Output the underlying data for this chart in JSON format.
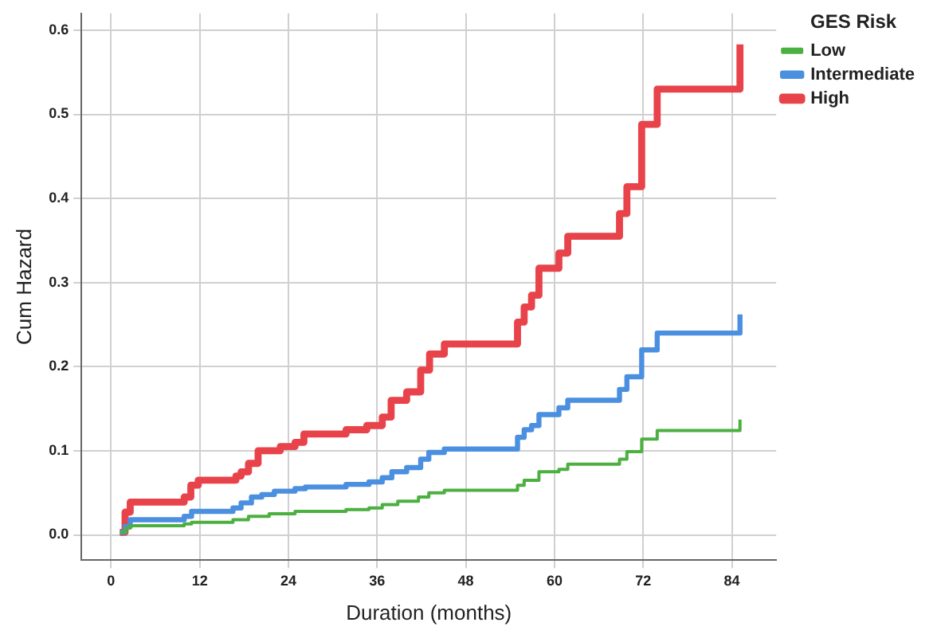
{
  "chart_data": {
    "type": "step",
    "xlabel": "Duration (months)",
    "ylabel": "Cum Hazard",
    "legend_title": "GES Risk",
    "legend": "top right",
    "grid": true,
    "line_style": "solid",
    "marker": "none",
    "xlim": [
      -4,
      90
    ],
    "ylim": [
      -0.03,
      0.62
    ],
    "xticks": [
      0,
      12,
      24,
      36,
      48,
      60,
      72,
      84
    ],
    "yticks": [
      {
        "value": 0,
        "label": "0.0"
      },
      {
        "value": 0.1,
        "label": "0.1"
      },
      {
        "value": 0.2,
        "label": "0.2"
      },
      {
        "value": 0.3,
        "label": "0.3"
      },
      {
        "value": 0.4,
        "label": "0.4"
      },
      {
        "value": 0.5,
        "label": "0.5"
      },
      {
        "value": 0.6,
        "label": "0.6"
      }
    ],
    "series": [
      {
        "name": "Low",
        "color": "#4cb040",
        "x": [
          1.2,
          2,
          2.6,
          9.9,
          10.9,
          16.5,
          18.6,
          21.4,
          24.9,
          31.8,
          34.9,
          36.7,
          38.8,
          41.6,
          43,
          45.1,
          55,
          55.9,
          57.9,
          60.6,
          61.8,
          68.8,
          69.8,
          71.8,
          73.9,
          85.1
        ],
        "values": [
          0.003,
          0.008,
          0.011,
          0.013,
          0.015,
          0.018,
          0.022,
          0.025,
          0.028,
          0.03,
          0.032,
          0.036,
          0.04,
          0.045,
          0.05,
          0.053,
          0.059,
          0.065,
          0.075,
          0.078,
          0.084,
          0.09,
          0.099,
          0.114,
          0.124,
          0.137
        ]
      },
      {
        "name": "Intermediate",
        "color": "#4a8fe0",
        "x": [
          1.2,
          1.9,
          2.6,
          9.9,
          10.9,
          16.5,
          17.6,
          19,
          20.4,
          22.1,
          24.9,
          26.3,
          31.8,
          34.9,
          36.7,
          38,
          40,
          41.9,
          43,
          45.1,
          55,
          55.9,
          56.9,
          57.9,
          60.6,
          61.8,
          68.8,
          69.8,
          71.8,
          73.9,
          85.1
        ],
        "values": [
          0.003,
          0.01,
          0.018,
          0.022,
          0.028,
          0.032,
          0.038,
          0.045,
          0.048,
          0.052,
          0.055,
          0.057,
          0.06,
          0.063,
          0.068,
          0.075,
          0.08,
          0.09,
          0.098,
          0.102,
          0.116,
          0.125,
          0.13,
          0.143,
          0.151,
          0.16,
          0.173,
          0.188,
          0.22,
          0.24,
          0.262
        ]
      },
      {
        "name": "High",
        "color": "#e8434a",
        "x": [
          1.2,
          1.9,
          2.6,
          9.9,
          10.8,
          11.8,
          16.9,
          17.6,
          18.6,
          19.9,
          22.9,
          24.9,
          26.1,
          31.8,
          34.6,
          36.7,
          37.9,
          40,
          41.9,
          43.1,
          45.1,
          55,
          55.9,
          56.9,
          57.9,
          60.6,
          61.8,
          68.8,
          69.8,
          71.8,
          73.9,
          85.1
        ],
        "values": [
          0.003,
          0.027,
          0.039,
          0.045,
          0.059,
          0.065,
          0.07,
          0.075,
          0.085,
          0.1,
          0.105,
          0.11,
          0.12,
          0.125,
          0.13,
          0.14,
          0.16,
          0.17,
          0.196,
          0.215,
          0.227,
          0.253,
          0.271,
          0.285,
          0.317,
          0.335,
          0.355,
          0.382,
          0.414,
          0.488,
          0.53,
          0.583
        ]
      }
    ]
  }
}
